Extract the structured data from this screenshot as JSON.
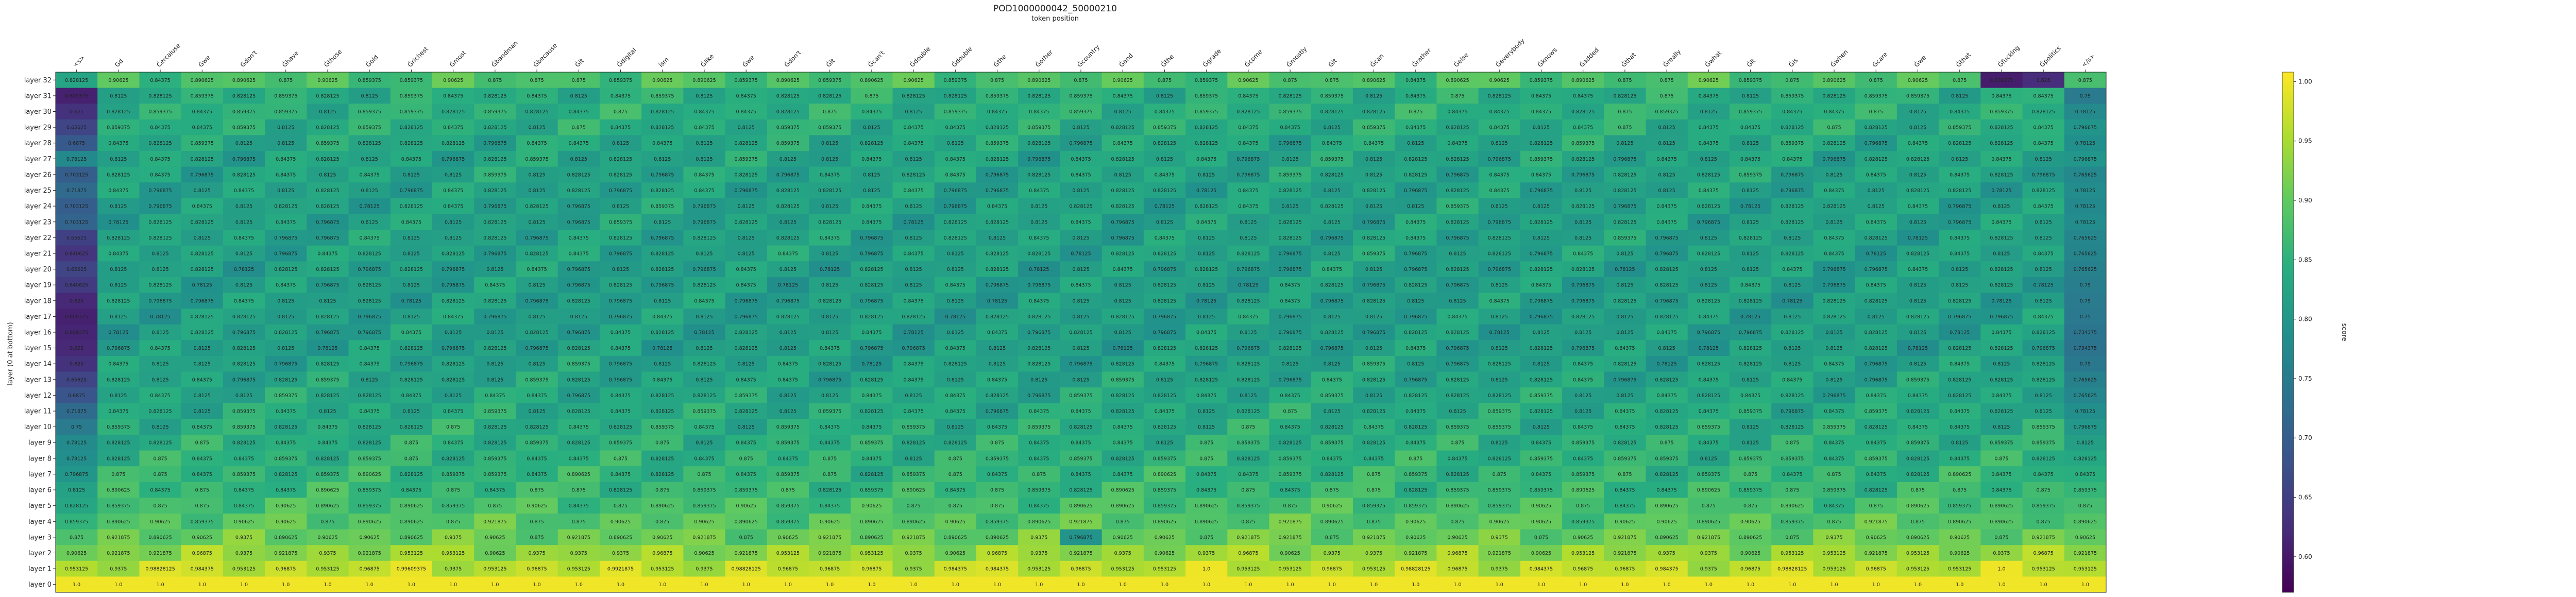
{
  "chart_data": {
    "type": "heatmap",
    "title": "POD1000000042_50000210",
    "xlabel": "token position",
    "ylabel": "layer (0 at bottom)",
    "colorbar_label": "score",
    "colorbar_ticks": [
      "0.60",
      "0.65",
      "0.70",
      "0.75",
      "0.80",
      "0.85",
      "0.90",
      "0.95",
      "1.00"
    ],
    "zlim": [
      0.57,
      1.008
    ],
    "colormap": "viridis",
    "x_labels": [
      "<s>",
      "Gd",
      "Ċercaiuse",
      "Gwe",
      "Gdon't",
      "Ġhave",
      "Ġthose",
      "Ġold",
      "Ġrichest",
      "Ġmost",
      "Ġbandman",
      "Ġbecause",
      "Ġit",
      "Ġdigital",
      "ism",
      "Ġlike",
      "Ġwe",
      "Ġdon't",
      "Ġit",
      "Ġcan't",
      "Ġdouble",
      "Ġdouble",
      "Ġthe",
      "Ġother",
      "Ġcountry",
      "Ġand",
      "Ġthe",
      "Ġgrade",
      "Ġcome",
      "Ġmostly",
      "Ġit",
      "Ġcan",
      "Ġrather",
      "Ġelse",
      "Ġeverybody",
      "Ġknows",
      "Ġadded",
      "Ġthat",
      "Ġreally",
      "Ġwhat",
      "Ġit",
      "Ġis",
      "Ġwhen",
      "Ġcare",
      "Ġwe",
      "Ġthat",
      "Ġfucking",
      "Ġpolitics",
      "</s>"
    ],
    "y_labels": [
      "layer 32",
      "layer 31",
      "layer 30",
      "layer 29",
      "layer 28",
      "layer 27",
      "layer 26",
      "layer 25",
      "layer 24",
      "layer 23",
      "layer 22",
      "layer 21",
      "layer 20",
      "layer 19",
      "layer 18",
      "layer 17",
      "layer 16",
      "layer 15",
      "layer 14",
      "layer 13",
      "layer 12",
      "layer 11",
      "layer 10",
      "layer 9",
      "layer 8",
      "layer 7",
      "layer 6",
      "layer 5",
      "layer 4",
      "layer 3",
      "layer 2",
      "layer 1",
      "layer 0"
    ],
    "layer_base": [
      0.88,
      0.84,
      0.845,
      0.84,
      0.83,
      0.825,
      0.825,
      0.82,
      0.82,
      0.82,
      0.82,
      0.82,
      0.815,
      0.815,
      0.815,
      0.815,
      0.815,
      0.815,
      0.82,
      0.825,
      0.83,
      0.835,
      0.84,
      0.845,
      0.85,
      0.855,
      0.86,
      0.875,
      0.89,
      0.905,
      0.935,
      0.965,
      1.0
    ],
    "first_col": [
      0.826,
      0.61,
      0.632,
      0.66,
      0.693,
      0.774,
      0.7,
      0.72,
      0.7,
      0.71,
      0.655,
      0.636,
      0.66,
      0.645,
      0.62,
      0.61,
      0.615,
      0.62,
      0.632,
      0.66,
      0.685,
      0.722,
      0.75,
      0.778,
      0.785,
      0.798,
      0.82,
      0.828,
      0.853,
      0.88,
      0.908,
      0.957,
      1.0
    ],
    "last_col": [
      0.876,
      0.75,
      0.776,
      0.796,
      0.787,
      0.799,
      0.773,
      0.78,
      0.775,
      0.78,
      0.771,
      0.766,
      0.761,
      0.756,
      0.751,
      0.746,
      0.74,
      0.736,
      0.745,
      0.76,
      0.77,
      0.785,
      0.8,
      0.815,
      0.83,
      0.845,
      0.858,
      0.873,
      0.887,
      0.9,
      0.927,
      0.958,
      1.0
    ],
    "special_cells": [
      {
        "layer": 32,
        "col": 46,
        "value": 0.605
      },
      {
        "layer": 32,
        "col": 47,
        "value": 0.625
      },
      {
        "layer": 3,
        "col": 24,
        "value": 0.795
      }
    ],
    "value_labels": [
      "1.0",
      "0.99609375",
      "0.9921875",
      "0.98828125",
      "0.984375",
      "0.96875",
      "0.953125",
      "0.9375",
      "0.921875",
      "0.90625",
      "0.890625",
      "0.875",
      "0.859375",
      "0.84375",
      "0.828125",
      "0.8125",
      "0.796875",
      "0.78125",
      "0.765625",
      "0.75",
      "0.734375",
      "0.71875",
      "0.703125",
      "0.6875",
      "0.671875",
      "0.65625",
      "0.640625",
      "0.625",
      "0.609375"
    ]
  }
}
